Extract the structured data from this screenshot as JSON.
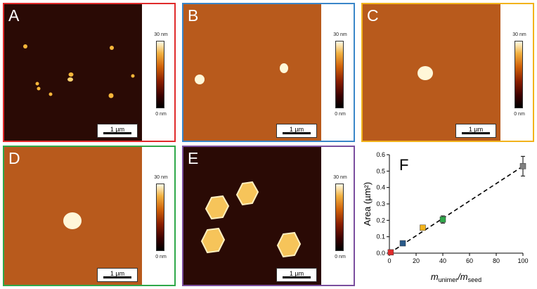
{
  "colors": {
    "A": "#e02b2b",
    "B": "#3a86c8",
    "C": "#f2b31c",
    "D": "#2fa84a",
    "E": "#7a4e9e",
    "afm_dark": "#2a0a05",
    "afm_mid": "#b85a1c"
  },
  "colorbar": {
    "top_label": "30 nm",
    "bottom_label": "0 nm"
  },
  "scale_label": "1 µm",
  "panels": [
    {
      "id": "A",
      "letter": "A"
    },
    {
      "id": "B",
      "letter": "B"
    },
    {
      "id": "C",
      "letter": "C"
    },
    {
      "id": "D",
      "letter": "D"
    },
    {
      "id": "E",
      "letter": "E"
    }
  ],
  "chart_data": {
    "type": "scatter",
    "panel_letter": "F",
    "x": [
      1,
      10,
      25,
      40,
      100
    ],
    "y": [
      0.005,
      0.06,
      0.155,
      0.205,
      0.53
    ],
    "y_err": [
      0.003,
      0.01,
      0.012,
      0.022,
      0.06
    ],
    "point_colors": [
      "#e02b2b",
      "#2a5a8a",
      "#f2b31c",
      "#2fa84a",
      "#808080"
    ],
    "fit_line": {
      "x": [
        0,
        100
      ],
      "y": [
        0.0,
        0.53
      ],
      "style": "dashed"
    },
    "xlabel_main": "m",
    "xlabel_sub1": "unimer",
    "xlabel_sep": "/m",
    "xlabel_sub2": "seed",
    "ylabel": "Area (µm²)",
    "xlim": [
      0,
      100
    ],
    "ylim": [
      0,
      0.6
    ],
    "xticks": [
      "0",
      "20",
      "40",
      "60",
      "80",
      "100"
    ],
    "yticks": [
      "0.0",
      "0.1",
      "0.2",
      "0.3",
      "0.4",
      "0.5",
      "0.6"
    ],
    "grid": false
  }
}
